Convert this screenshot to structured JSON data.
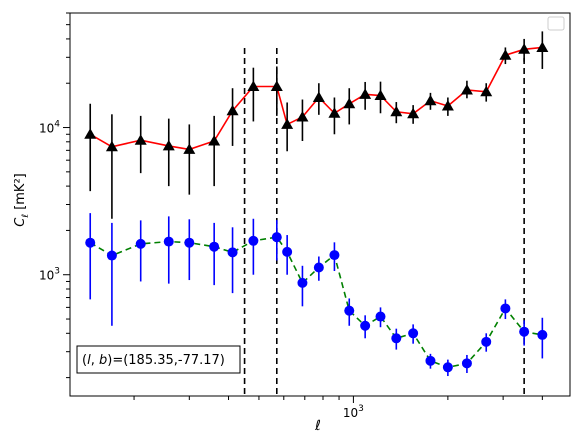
{
  "chart_data": {
    "type": "scatter",
    "xlabel": "ℓ",
    "ylabel": "C",
    "ylabel_sub": "ℓ",
    "ylabel_unit": " [mK²]",
    "xscale": "log",
    "yscale": "log",
    "xlim": [
      125,
      4900
    ],
    "ylim": [
      150,
      60000
    ],
    "x_tick_labels": [
      {
        "value": 1000,
        "base": "10",
        "exp": "3"
      }
    ],
    "y_tick_labels": [
      {
        "value": 1000,
        "base": "10",
        "exp": "3"
      },
      {
        "value": 10000,
        "base": "10",
        "exp": "4"
      }
    ],
    "vlines": [
      450,
      570,
      3500
    ],
    "annotation": {
      "text": "(l, b)=(185.35,-77.17)",
      "l": "l",
      "b": "b",
      "value": "=(185.35,-77.17)"
    },
    "legend": {
      "placement": "upper right",
      "entries": []
    },
    "series": [
      {
        "marker": "triangle",
        "marker_color": "#000000",
        "line_color": "#ff0000",
        "line_style": "solid",
        "errorbar_color": "#000000",
        "points": [
          {
            "x": 145,
            "y": 9000,
            "lo": 3700,
            "hi": 14500
          },
          {
            "x": 170,
            "y": 7400,
            "lo": 2400,
            "hi": 12300
          },
          {
            "x": 210,
            "y": 8200,
            "lo": 4900,
            "hi": 12000
          },
          {
            "x": 258,
            "y": 7500,
            "lo": 4000,
            "hi": 11500
          },
          {
            "x": 300,
            "y": 7100,
            "lo": 3500,
            "hi": 10500
          },
          {
            "x": 360,
            "y": 8100,
            "lo": 4000,
            "hi": 12000
          },
          {
            "x": 412,
            "y": 13000,
            "lo": 7500,
            "hi": 18500
          },
          {
            "x": 480,
            "y": 19000,
            "lo": 11000,
            "hi": 25500
          },
          {
            "x": 570,
            "y": 19000,
            "lo": 12000,
            "hi": 26000
          },
          {
            "x": 615,
            "y": 10500,
            "lo": 6900,
            "hi": 14800
          },
          {
            "x": 688,
            "y": 11800,
            "lo": 8100,
            "hi": 15500
          },
          {
            "x": 776,
            "y": 16000,
            "lo": 12200,
            "hi": 20000
          },
          {
            "x": 870,
            "y": 12500,
            "lo": 9000,
            "hi": 16000
          },
          {
            "x": 970,
            "y": 14500,
            "lo": 10500,
            "hi": 18500
          },
          {
            "x": 1090,
            "y": 16800,
            "lo": 13200,
            "hi": 20400
          },
          {
            "x": 1220,
            "y": 16500,
            "lo": 12500,
            "hi": 20500
          },
          {
            "x": 1370,
            "y": 12800,
            "lo": 10700,
            "hi": 14900
          },
          {
            "x": 1550,
            "y": 12400,
            "lo": 10600,
            "hi": 14200
          },
          {
            "x": 1760,
            "y": 15200,
            "lo": 13200,
            "hi": 17200
          },
          {
            "x": 2000,
            "y": 14000,
            "lo": 12000,
            "hi": 16000
          },
          {
            "x": 2300,
            "y": 18000,
            "lo": 15800,
            "hi": 20800
          },
          {
            "x": 2650,
            "y": 17500,
            "lo": 15000,
            "hi": 20000
          },
          {
            "x": 3050,
            "y": 31000,
            "lo": 27000,
            "hi": 35000
          },
          {
            "x": 3500,
            "y": 34000,
            "lo": 28000,
            "hi": 40000
          },
          {
            "x": 4000,
            "y": 35000,
            "lo": 25000,
            "hi": 45000
          }
        ]
      },
      {
        "marker": "circle",
        "marker_color": "#0000ff",
        "line_color": "#008000",
        "line_style": "dashed",
        "errorbar_color": "#0000ff",
        "points": [
          {
            "x": 145,
            "y": 1650,
            "lo": 680,
            "hi": 2620
          },
          {
            "x": 170,
            "y": 1350,
            "lo": 450,
            "hi": 2250
          },
          {
            "x": 210,
            "y": 1620,
            "lo": 900,
            "hi": 2340
          },
          {
            "x": 258,
            "y": 1680,
            "lo": 870,
            "hi": 2490
          },
          {
            "x": 300,
            "y": 1650,
            "lo": 920,
            "hi": 2380
          },
          {
            "x": 360,
            "y": 1550,
            "lo": 850,
            "hi": 2250
          },
          {
            "x": 412,
            "y": 1420,
            "lo": 750,
            "hi": 2100
          },
          {
            "x": 480,
            "y": 1700,
            "lo": 1000,
            "hi": 2400
          },
          {
            "x": 570,
            "y": 1800,
            "lo": 1250,
            "hi": 2350
          },
          {
            "x": 615,
            "y": 1430,
            "lo": 1000,
            "hi": 1860
          },
          {
            "x": 688,
            "y": 880,
            "lo": 610,
            "hi": 1150
          },
          {
            "x": 776,
            "y": 1120,
            "lo": 910,
            "hi": 1330
          },
          {
            "x": 870,
            "y": 1360,
            "lo": 1060,
            "hi": 1660
          },
          {
            "x": 970,
            "y": 570,
            "lo": 450,
            "hi": 690
          },
          {
            "x": 1090,
            "y": 450,
            "lo": 370,
            "hi": 530
          },
          {
            "x": 1220,
            "y": 520,
            "lo": 440,
            "hi": 600
          },
          {
            "x": 1370,
            "y": 370,
            "lo": 310,
            "hi": 430
          },
          {
            "x": 1550,
            "y": 400,
            "lo": 340,
            "hi": 460
          },
          {
            "x": 1760,
            "y": 260,
            "lo": 230,
            "hi": 290
          },
          {
            "x": 2000,
            "y": 235,
            "lo": 205,
            "hi": 265
          },
          {
            "x": 2300,
            "y": 250,
            "lo": 215,
            "hi": 285
          },
          {
            "x": 2650,
            "y": 350,
            "lo": 300,
            "hi": 400
          },
          {
            "x": 3050,
            "y": 590,
            "lo": 500,
            "hi": 680
          },
          {
            "x": 3500,
            "y": 410,
            "lo": 330,
            "hi": 490
          },
          {
            "x": 4000,
            "y": 390,
            "lo": 270,
            "hi": 510
          }
        ]
      }
    ]
  }
}
